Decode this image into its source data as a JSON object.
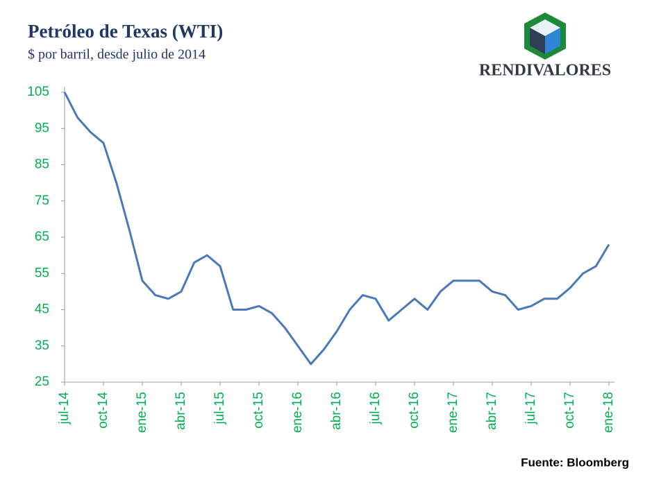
{
  "chart_data": {
    "type": "line",
    "title": "Petróleo de Texas (WTI)",
    "subtitle": "$ por barril, desde julio de 2014",
    "brand": "RENDIVALORES",
    "source": "Fuente: Bloomberg",
    "categories": [
      "jul-14",
      null,
      null,
      "oct-14",
      null,
      null,
      "ene-15",
      null,
      null,
      "abr-15",
      null,
      null,
      "jul-15",
      null,
      null,
      "oct-15",
      null,
      null,
      "ene-16",
      null,
      null,
      "abr-16",
      null,
      null,
      "jul-16",
      null,
      null,
      "oct-16",
      null,
      null,
      "ene-17",
      null,
      null,
      "abr-17",
      null,
      null,
      "jul-17",
      null,
      null,
      "oct-17",
      null,
      null,
      "ene-18"
    ],
    "series": [
      {
        "name": "WTI",
        "color": "#4a78b8",
        "values": [
          105,
          98,
          94,
          91,
          80,
          67,
          53,
          49,
          48,
          50,
          58,
          60,
          57,
          45,
          45,
          46,
          44,
          40,
          35,
          30,
          34,
          39,
          45,
          49,
          48,
          42,
          45,
          48,
          45,
          50,
          53,
          53,
          53,
          50,
          49,
          45,
          46,
          48,
          48,
          51,
          55,
          57,
          63
        ]
      }
    ],
    "ylim": [
      25,
      105
    ],
    "yticks": [
      25,
      35,
      45,
      55,
      65,
      75,
      85,
      95,
      105
    ],
    "tick_color": "#00b050"
  }
}
